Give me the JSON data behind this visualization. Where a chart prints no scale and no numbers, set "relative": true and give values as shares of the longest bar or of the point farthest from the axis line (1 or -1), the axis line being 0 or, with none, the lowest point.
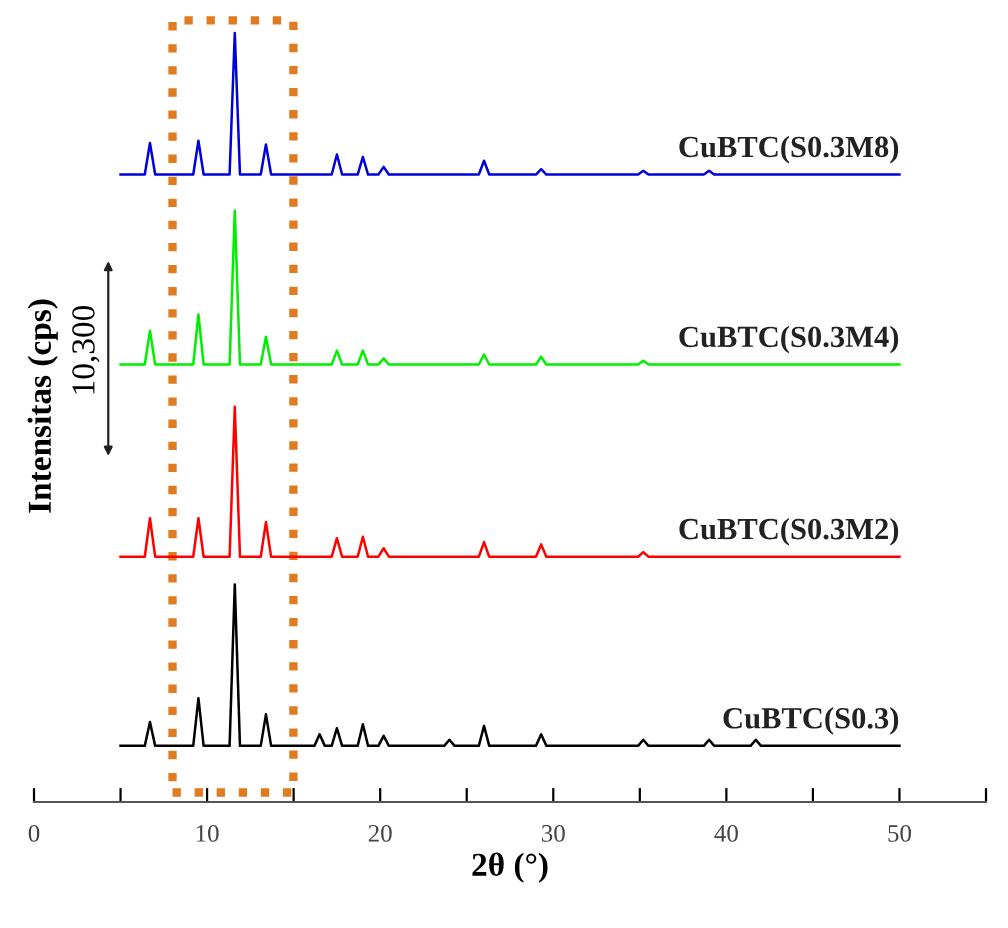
{
  "chart_data": {
    "type": "line",
    "relative": true,
    "xlabel": "2θ (°)",
    "ylabel": "Intensitas (cps)",
    "xlim": [
      0,
      55
    ],
    "xticks": [
      0,
      {
        "value": 5,
        "label": null
      },
      10,
      {
        "value": 15,
        "label": null
      },
      20,
      {
        "value": 25,
        "label": null
      },
      30,
      {
        "value": 35,
        "label": null
      },
      40,
      {
        "value": 45,
        "label": null
      },
      50,
      {
        "value": 55,
        "label": null
      }
    ],
    "tick_labels": "x",
    "grid": false,
    "legend": false,
    "marker": "none",
    "line_style": "solid",
    "annotations": [
      "10,300"
    ],
    "series": [
      {
        "name": "CuBTC(S0.3)",
        "color": "#000000",
        "x": [
          5,
          6.4,
          6.7,
          7.0,
          9.2,
          9.5,
          9.8,
          11.3,
          11.6,
          11.9,
          13.1,
          13.4,
          13.7,
          16.2,
          16.5,
          16.8,
          17.2,
          17.5,
          17.8,
          18.7,
          19.0,
          19.3,
          19.9,
          20.2,
          20.5,
          23.7,
          24.0,
          24.3,
          25.7,
          26.0,
          26.3,
          29.0,
          29.3,
          29.6,
          34.9,
          35.2,
          35.5,
          38.7,
          39.0,
          39.3,
          41.4,
          41.7,
          42.0,
          50
        ],
        "values": [
          0.073,
          0.073,
          0.104,
          0.073,
          0.073,
          0.135,
          0.073,
          0.073,
          0.283,
          0.073,
          0.073,
          0.114,
          0.073,
          0.073,
          0.088,
          0.073,
          0.073,
          0.096,
          0.073,
          0.073,
          0.101,
          0.073,
          0.073,
          0.086,
          0.073,
          0.073,
          0.081,
          0.073,
          0.073,
          0.099,
          0.073,
          0.073,
          0.088,
          0.073,
          0.073,
          0.081,
          0.073,
          0.073,
          0.081,
          0.073,
          0.073,
          0.081,
          0.073,
          0.073
        ]
      },
      {
        "name": "CuBTC(S0.3M2)",
        "color": "#ff0000",
        "x": [
          5,
          6.4,
          6.7,
          7.0,
          9.2,
          9.5,
          9.8,
          11.3,
          11.6,
          11.9,
          13.1,
          13.4,
          13.7,
          17.2,
          17.5,
          17.8,
          18.7,
          19.0,
          19.3,
          19.9,
          20.2,
          20.5,
          25.7,
          26.0,
          26.3,
          29.0,
          29.3,
          29.6,
          34.9,
          35.2,
          35.5,
          50
        ],
        "values": [
          0.319,
          0.319,
          0.369,
          0.319,
          0.319,
          0.369,
          0.319,
          0.319,
          0.514,
          0.319,
          0.319,
          0.364,
          0.319,
          0.319,
          0.343,
          0.319,
          0.319,
          0.345,
          0.319,
          0.319,
          0.33,
          0.319,
          0.319,
          0.338,
          0.319,
          0.319,
          0.335,
          0.319,
          0.319,
          0.325,
          0.319,
          0.319
        ]
      },
      {
        "name": "CuBTC(S0.3M4)",
        "color": "#00ee00",
        "x": [
          5,
          6.4,
          6.7,
          7.0,
          9.2,
          9.5,
          9.8,
          11.3,
          11.6,
          11.9,
          13.1,
          13.4,
          13.7,
          17.2,
          17.5,
          17.8,
          18.7,
          19.0,
          19.3,
          19.9,
          20.2,
          20.5,
          25.7,
          26.0,
          26.3,
          29.0,
          29.3,
          29.6,
          34.9,
          35.2,
          35.5,
          50
        ],
        "values": [
          0.569,
          0.569,
          0.613,
          0.569,
          0.569,
          0.634,
          0.569,
          0.569,
          0.769,
          0.569,
          0.569,
          0.605,
          0.569,
          0.569,
          0.587,
          0.569,
          0.569,
          0.587,
          0.569,
          0.569,
          0.577,
          0.569,
          0.569,
          0.582,
          0.569,
          0.569,
          0.579,
          0.569,
          0.569,
          0.574,
          0.569,
          0.569
        ]
      },
      {
        "name": "CuBTC(S0.3M8)",
        "color": "#0000dd",
        "x": [
          5,
          6.4,
          6.7,
          7.0,
          9.2,
          9.5,
          9.8,
          11.3,
          11.6,
          11.9,
          13.1,
          13.4,
          13.7,
          17.2,
          17.5,
          17.8,
          18.7,
          19.0,
          19.3,
          19.9,
          20.2,
          20.5,
          25.7,
          26.0,
          26.3,
          29.0,
          29.3,
          29.6,
          34.9,
          35.2,
          35.5,
          38.7,
          39.0,
          39.3,
          50
        ],
        "values": [
          0.816,
          0.816,
          0.857,
          0.816,
          0.816,
          0.86,
          0.816,
          0.816,
          1.0,
          0.816,
          0.816,
          0.855,
          0.816,
          0.816,
          0.842,
          0.816,
          0.816,
          0.839,
          0.816,
          0.816,
          0.826,
          0.816,
          0.816,
          0.834,
          0.816,
          0.816,
          0.823,
          0.816,
          0.816,
          0.821,
          0.816,
          0.816,
          0.821,
          0.816,
          0.816
        ]
      }
    ]
  }
}
